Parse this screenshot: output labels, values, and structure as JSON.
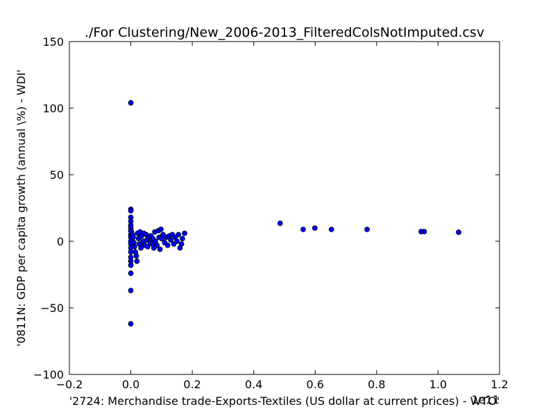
{
  "chart_data": {
    "type": "scatter",
    "title": "./For Clustering/New_2006-2013_FilteredColsNotImputed.csv",
    "xlabel": "'2724: Merchandise trade-Exports-Textiles (US dollar at current prices) - WTO'",
    "ylabel": "'0811N: GDP per capita growth  (annual \\%) - WDI'",
    "x_offset_label": "1e11",
    "color": "#0000ff",
    "xlim": [
      -0.2,
      1.2
    ],
    "xticks": [
      {
        "value": -0.2,
        "label": "−0.2"
      },
      {
        "value": 0,
        "label": "0.0"
      },
      0.2,
      0.4,
      0.6,
      0.8,
      {
        "value": 1,
        "label": "1.0"
      },
      1.2
    ],
    "ylim": [
      -100,
      150
    ],
    "yticks": [
      {
        "value": -100,
        "label": "−100"
      },
      {
        "value": -50,
        "label": "−50"
      },
      0,
      50,
      100,
      150
    ],
    "x": [
      0,
      0,
      0,
      0,
      0,
      0,
      0,
      0,
      0,
      0,
      0,
      0,
      0,
      0,
      0,
      0,
      0,
      0,
      0,
      0,
      0.002,
      0.005,
      0.008,
      0.01,
      0.012,
      0.015,
      0.018,
      0.02,
      0.022,
      0.025,
      0.028,
      0.03,
      0.033,
      0.035,
      0.04,
      0.042,
      0.045,
      0.05,
      0.052,
      0.055,
      0.06,
      0.063,
      0.065,
      0.07,
      0.072,
      0.075,
      0.078,
      0.08,
      0.085,
      0.09,
      0.092,
      0.095,
      0.098,
      0.1,
      0.105,
      0.11,
      0.115,
      0.12,
      0.125,
      0.13,
      0.135,
      0.14,
      0.145,
      0.15,
      0.155,
      0.16,
      0.165,
      0.168,
      0.175,
      0.486,
      0.561,
      0.599,
      0.653,
      0.769,
      0.945,
      0.955,
      1.067
    ],
    "y": [
      104,
      24,
      23,
      18,
      15,
      12,
      10,
      8,
      5,
      3,
      0,
      -2,
      -5,
      -8,
      -12,
      -15,
      -18,
      -24,
      -37,
      -62,
      7,
      5,
      3,
      -1,
      -4,
      -8,
      -11,
      -15,
      6,
      2,
      -2,
      7,
      -5,
      4,
      0,
      6,
      -3,
      5,
      1,
      -4,
      3,
      -1,
      4,
      -2,
      2,
      -5,
      7,
      0,
      -3,
      8,
      3,
      -6,
      9,
      2,
      5,
      -1,
      3,
      -3,
      4,
      1,
      5,
      -2,
      3,
      0,
      5,
      -5,
      -2,
      2,
      6,
      13.5,
      8.9,
      9.9,
      8.9,
      8.9,
      7.3,
      7.3,
      6.8
    ]
  }
}
